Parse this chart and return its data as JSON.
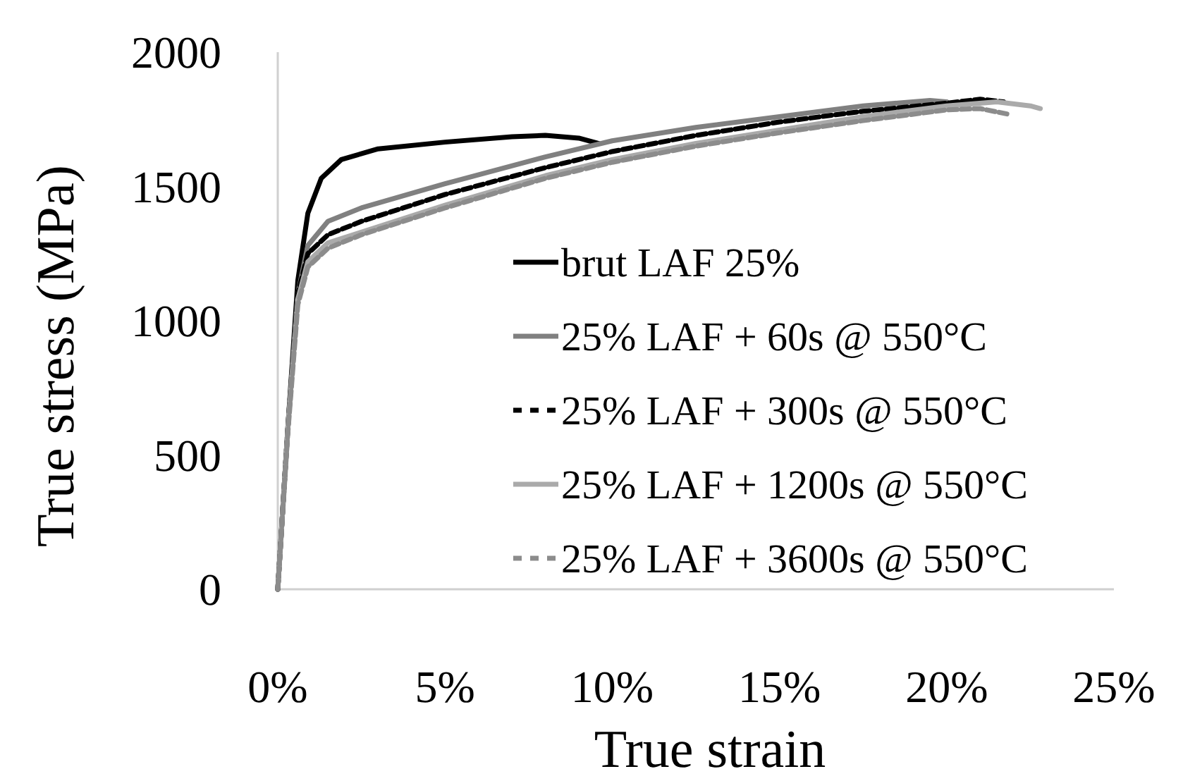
{
  "chart_data": {
    "type": "line",
    "xlabel": "True strain",
    "ylabel": "True stress (MPa)",
    "xlim": [
      0,
      25
    ],
    "ylim": [
      0,
      2000
    ],
    "xticks": [
      {
        "value": 0,
        "label": "0%"
      },
      {
        "value": 5,
        "label": "5%"
      },
      {
        "value": 10,
        "label": "10%"
      },
      {
        "value": 15,
        "label": "15%"
      },
      {
        "value": 20,
        "label": "20%"
      },
      {
        "value": 25,
        "label": "25%"
      }
    ],
    "yticks": [
      0,
      500,
      1000,
      1500,
      2000
    ],
    "grid": false,
    "legend": "bottom right",
    "marker": "none",
    "series": [
      {
        "name": "brut LAF 25%",
        "color": "#000000",
        "line_style": "solid",
        "x": [
          0,
          0.3,
          0.6,
          0.9,
          1.3,
          1.9,
          3,
          5,
          7,
          8,
          9,
          9.6
        ],
        "values": [
          0,
          600,
          1150,
          1400,
          1530,
          1600,
          1640,
          1665,
          1685,
          1690,
          1680,
          1660
        ]
      },
      {
        "name": "25% LAF + 60s @ 550°C",
        "color": "#808080",
        "line_style": "solid",
        "x": [
          0,
          0.3,
          0.6,
          0.9,
          1.5,
          2.5,
          5,
          8,
          10,
          12.5,
          15,
          17.5,
          19.5,
          20
        ],
        "values": [
          0,
          600,
          1100,
          1280,
          1370,
          1420,
          1510,
          1610,
          1670,
          1720,
          1760,
          1800,
          1820,
          1815
        ]
      },
      {
        "name": "25% LAF + 300s @ 550°C",
        "color": "#000000",
        "line_style": "dashed",
        "x": [
          0,
          0.3,
          0.6,
          0.9,
          1.5,
          2.5,
          5,
          8,
          10,
          12.5,
          15,
          17.5,
          20,
          21,
          21.7
        ],
        "values": [
          0,
          600,
          1100,
          1250,
          1320,
          1370,
          1470,
          1570,
          1630,
          1690,
          1740,
          1780,
          1810,
          1825,
          1815
        ]
      },
      {
        "name": "25% LAF + 1200s @ 550°C",
        "color": "#aaaaaa",
        "line_style": "solid",
        "x": [
          0,
          0.3,
          0.6,
          0.9,
          1.5,
          2.5,
          5,
          8,
          10,
          12.5,
          15,
          17.5,
          20,
          21.5,
          22.5,
          22.8
        ],
        "values": [
          0,
          600,
          1080,
          1220,
          1290,
          1330,
          1430,
          1540,
          1600,
          1660,
          1710,
          1760,
          1800,
          1815,
          1800,
          1790
        ]
      },
      {
        "name": "25% LAF + 3600s @ 550°C",
        "color": "#8c8c8c",
        "line_style": "dashed",
        "x": [
          0,
          0.3,
          0.6,
          0.9,
          1.5,
          2.5,
          5,
          8,
          10,
          12.5,
          15,
          17.5,
          20,
          21,
          21.8
        ],
        "values": [
          0,
          580,
          1060,
          1200,
          1270,
          1320,
          1420,
          1530,
          1590,
          1650,
          1700,
          1745,
          1785,
          1790,
          1770
        ]
      }
    ]
  }
}
